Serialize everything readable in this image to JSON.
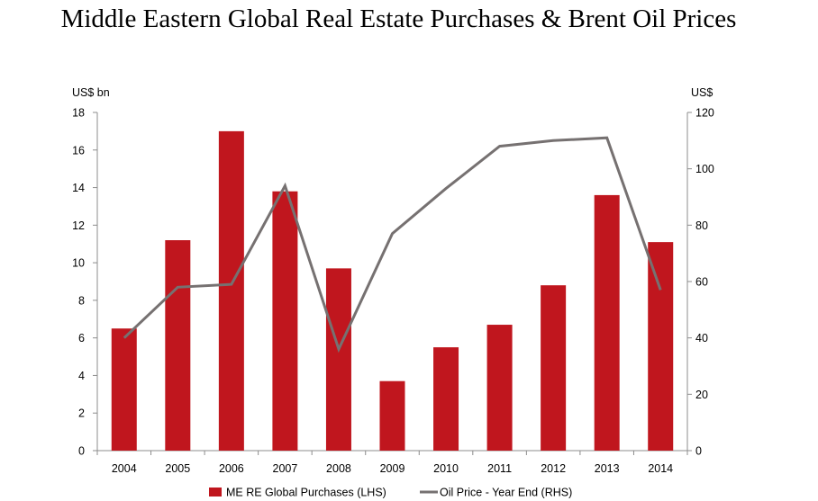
{
  "chart_data": {
    "type": "bar+line",
    "title": "Middle Eastern Global Real Estate Purchases & Brent Oil Prices",
    "categories": [
      "2004",
      "2005",
      "2006",
      "2007",
      "2008",
      "2009",
      "2010",
      "2011",
      "2012",
      "2013",
      "2014"
    ],
    "left_axis": {
      "label": "US$ bn",
      "range": [
        0,
        18
      ],
      "ticks": [
        "0",
        "2",
        "4",
        "6",
        "8",
        "10",
        "12",
        "14",
        "16",
        "18"
      ]
    },
    "right_axis": {
      "label": "US$",
      "range": [
        0,
        120
      ],
      "ticks": [
        "0",
        "20",
        "40",
        "60",
        "80",
        "100",
        "120"
      ]
    },
    "series": [
      {
        "name": "ME RE Global Purchases (LHS)",
        "type": "bar",
        "axis": "left",
        "color": "#c0161e",
        "values": [
          6.5,
          11.2,
          17.0,
          13.8,
          9.7,
          3.7,
          5.5,
          6.7,
          8.8,
          13.6,
          11.1
        ]
      },
      {
        "name": "Oil Price - Year End (RHS)",
        "type": "line",
        "axis": "right",
        "color": "#767171",
        "values": [
          40,
          58,
          59,
          94,
          36,
          77,
          93,
          108,
          110,
          111,
          57
        ]
      }
    ],
    "legend_position": "bottom",
    "grid": false
  }
}
